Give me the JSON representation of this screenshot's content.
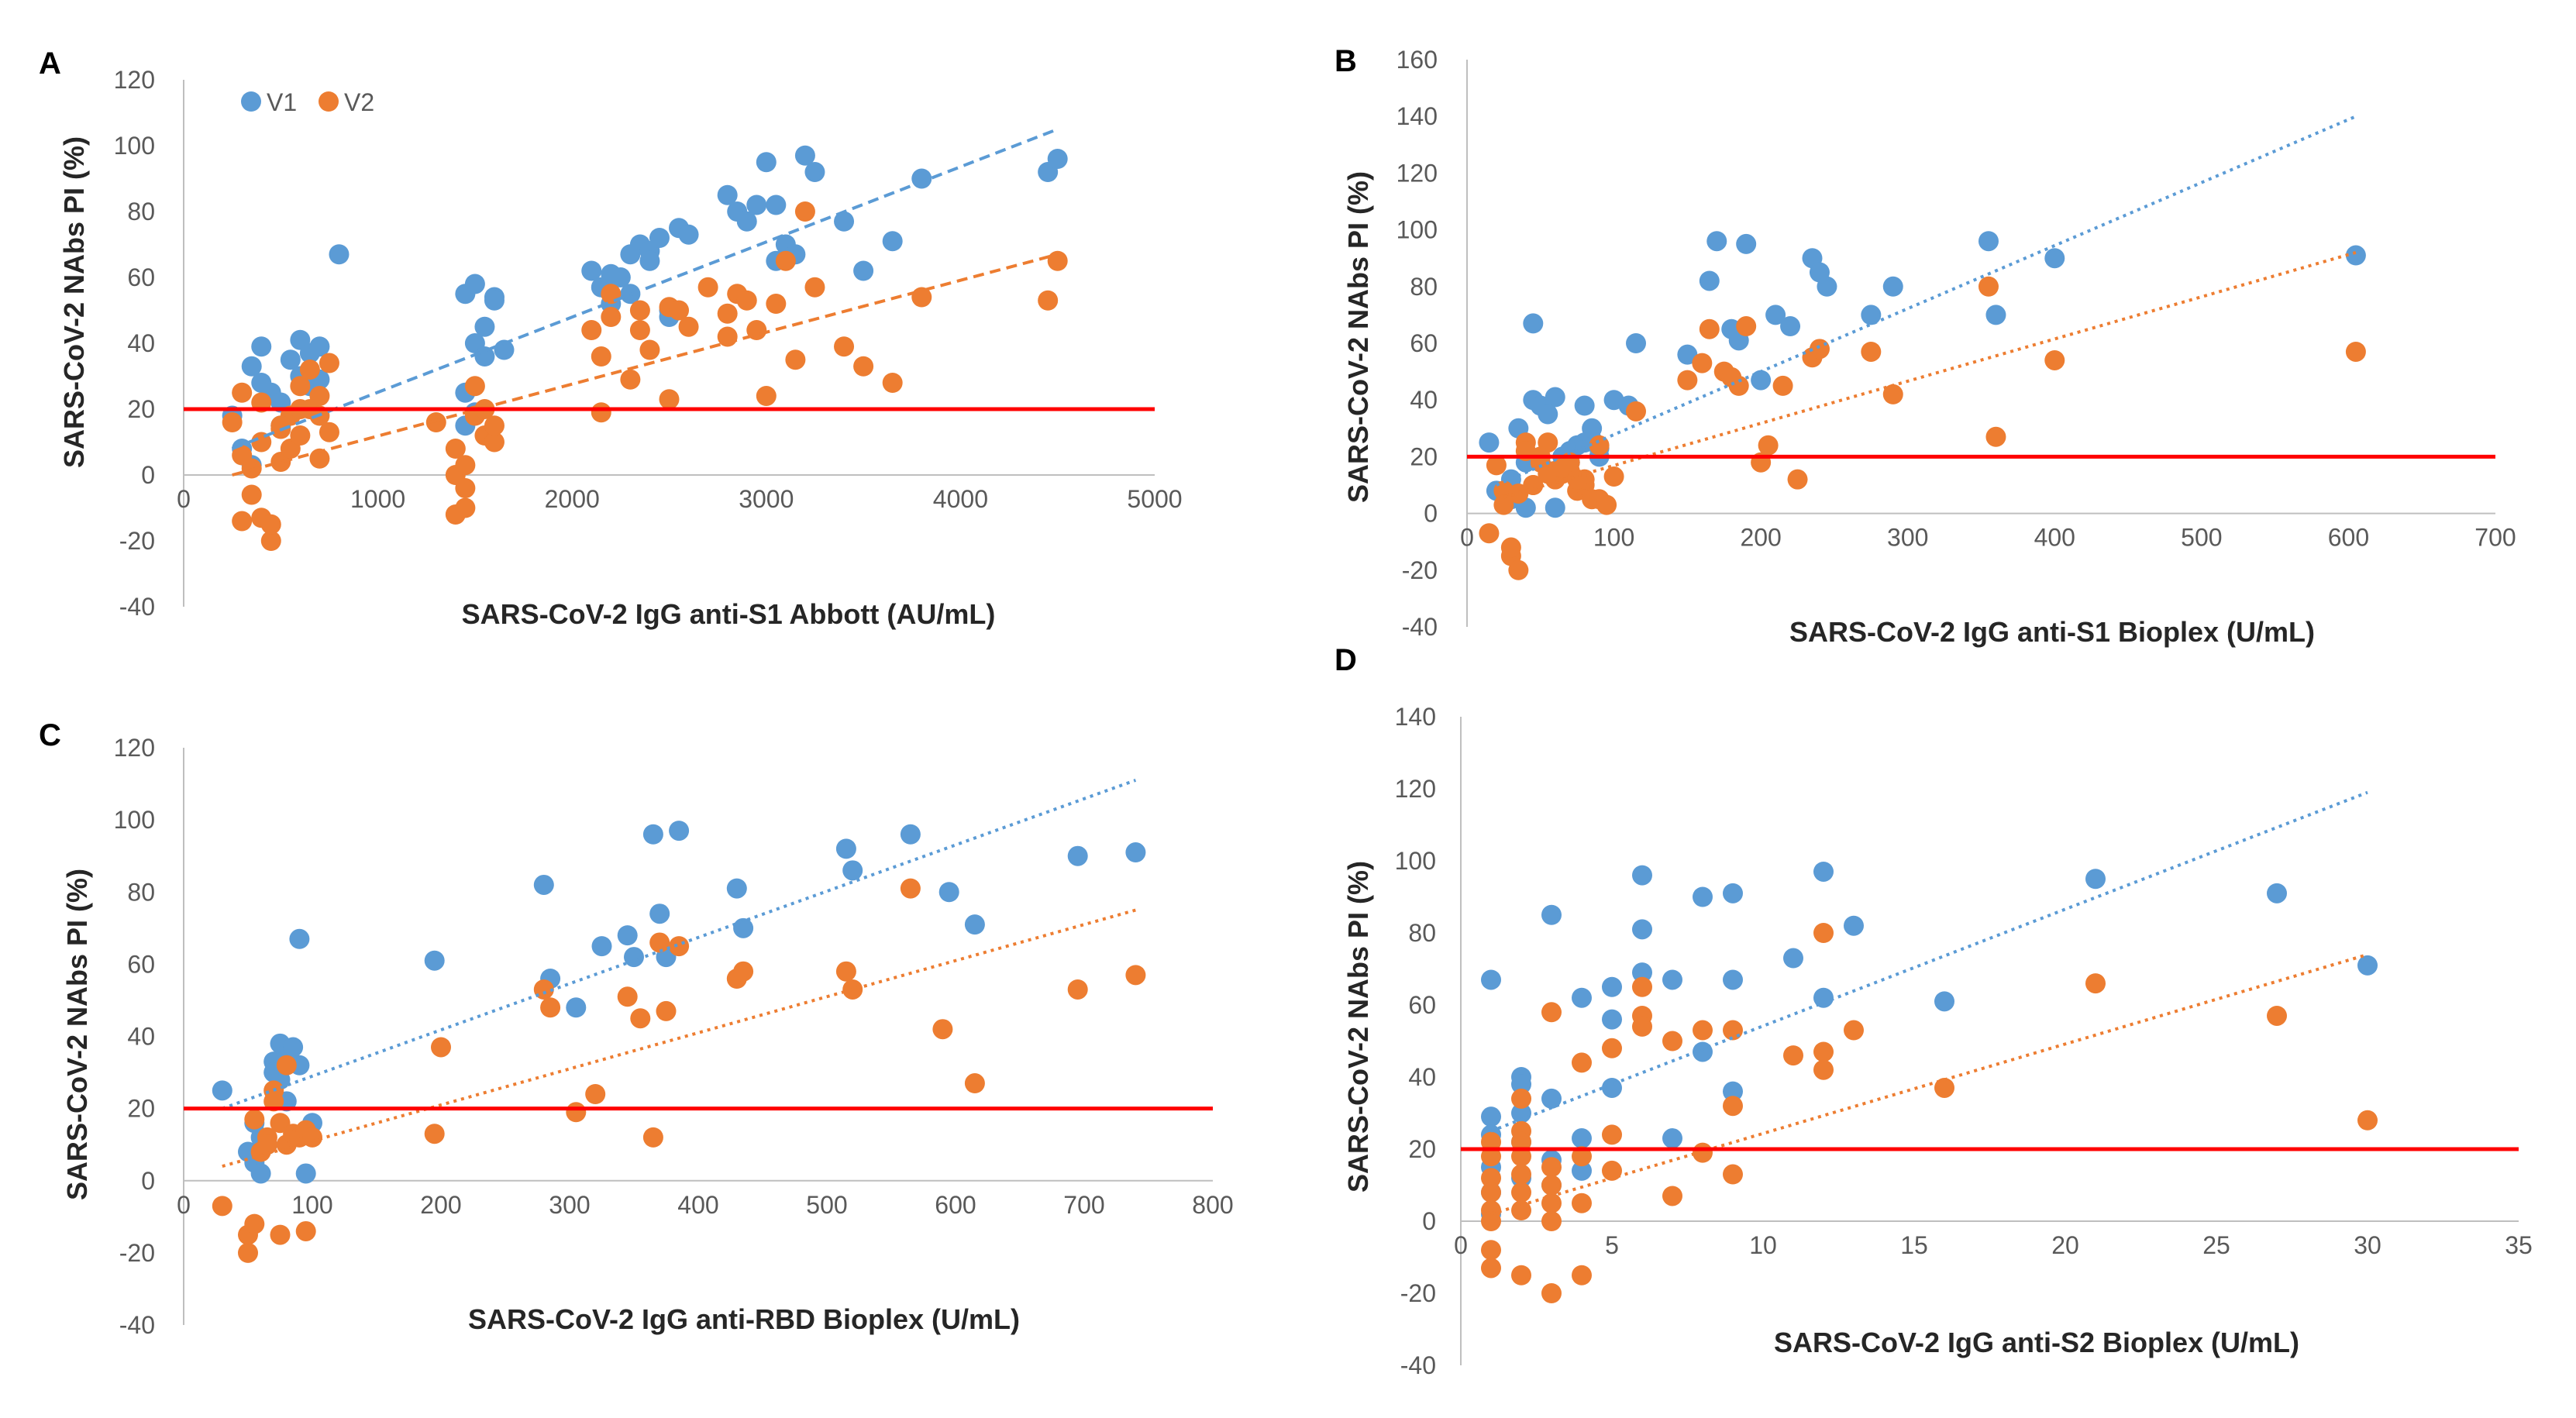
{
  "colors": {
    "v1": "#5b9bd5",
    "v2": "#ed7d31",
    "threshold": "#ff0000",
    "axis": "#bfbfbf"
  },
  "legend": {
    "v1": "V1",
    "v2": "V2"
  },
  "chart_data": [
    {
      "panel": "A",
      "type": "scatter",
      "xlabel": "SARS-CoV-2 IgG anti-S1 Abbott (AU/mL)",
      "ylabel": "SARS-CoV-2 NAbs PI (%)",
      "xlim": [
        0,
        5000
      ],
      "ylim": [
        -40,
        120
      ],
      "xticks": [
        "0",
        "1000",
        "2000",
        "3000",
        "4000",
        "5000"
      ],
      "yticks": [
        "-40",
        "-20",
        "0",
        "20",
        "40",
        "60",
        "80",
        "100",
        "120"
      ],
      "threshold": 20,
      "legend_position": "top-left",
      "series": [
        {
          "name": "V1",
          "trend": [
            [
              250,
              8
            ],
            [
              4500,
              105
            ]
          ],
          "x": [
            250,
            300,
            350,
            400,
            450,
            500,
            550,
            600,
            650,
            700,
            350,
            400,
            500,
            600,
            650,
            700,
            800,
            1450,
            1500,
            1550,
            1600,
            1650,
            1450,
            1500,
            1550,
            1600,
            1500,
            1450,
            2100,
            2150,
            2200,
            2250,
            2300,
            2350,
            2400,
            2450,
            2500,
            2550,
            2600,
            2200,
            2300,
            2400,
            2500,
            2800,
            2850,
            2900,
            3000,
            3050,
            3100,
            3150,
            3250,
            3200,
            3400,
            3500,
            3650,
            3800,
            4450,
            4500,
            2950,
            3050
          ],
          "y": [
            18,
            8,
            33,
            39,
            25,
            15,
            35,
            41,
            37,
            29,
            3,
            28,
            22,
            30,
            27,
            39,
            67,
            55,
            58,
            45,
            54,
            38,
            25,
            40,
            36,
            53,
            19,
            15,
            62,
            57,
            61,
            60,
            67,
            70,
            68,
            72,
            48,
            75,
            73,
            52,
            55,
            65,
            50,
            85,
            80,
            77,
            95,
            82,
            70,
            67,
            92,
            97,
            77,
            62,
            71,
            90,
            92,
            96,
            82,
            65
          ]
        },
        {
          "name": "V2",
          "trend": [
            [
              250,
              0
            ],
            [
              4500,
              67
            ]
          ],
          "x": [
            250,
            300,
            300,
            350,
            350,
            400,
            400,
            450,
            450,
            500,
            500,
            550,
            550,
            600,
            600,
            650,
            650,
            700,
            700,
            750,
            750,
            300,
            400,
            500,
            600,
            700,
            1300,
            1400,
            1400,
            1450,
            1450,
            1500,
            1500,
            1550,
            1550,
            1600,
            1600,
            1400,
            1450,
            2100,
            2150,
            2150,
            2200,
            2200,
            2300,
            2350,
            2350,
            2400,
            2500,
            2500,
            2550,
            2600,
            2700,
            2800,
            2800,
            2850,
            2900,
            2950,
            3000,
            3050,
            3100,
            3150,
            3200,
            3250,
            3400,
            3500,
            3650,
            3800,
            4450,
            4500
          ],
          "y": [
            16,
            25,
            -14,
            -6,
            2,
            -13,
            22,
            -20,
            -15,
            14,
            4,
            18,
            8,
            27,
            12,
            32,
            20,
            24,
            5,
            13,
            34,
            6,
            10,
            15,
            20,
            18,
            16,
            -12,
            0,
            -4,
            3,
            27,
            18,
            20,
            12,
            10,
            15,
            8,
            -10,
            44,
            36,
            19,
            48,
            55,
            29,
            50,
            44,
            38,
            23,
            51,
            50,
            45,
            57,
            42,
            49,
            55,
            53,
            44,
            24,
            52,
            65,
            35,
            80,
            57,
            39,
            33,
            28,
            54,
            53,
            65
          ]
        }
      ]
    },
    {
      "panel": "B",
      "type": "scatter",
      "xlabel": "SARS-CoV-2 IgG anti-S1 Bioplex (U/mL)",
      "ylabel": "SARS-CoV-2 NAbs PI (%)",
      "xlim": [
        0,
        700
      ],
      "ylim": [
        -40,
        160
      ],
      "xticks": [
        "0",
        "100",
        "200",
        "300",
        "400",
        "500",
        "600",
        "700"
      ],
      "yticks": [
        "-40",
        "-20",
        "0",
        "20",
        "40",
        "60",
        "80",
        "100",
        "120",
        "140",
        "160"
      ],
      "threshold": 20,
      "legend_position": "none",
      "series": [
        {
          "name": "V1",
          "trend": [
            [
              20,
              10
            ],
            [
              605,
              140
            ]
          ],
          "x": [
            15,
            20,
            30,
            35,
            40,
            45,
            50,
            55,
            60,
            65,
            70,
            75,
            80,
            85,
            90,
            45,
            55,
            60,
            70,
            80,
            85,
            90,
            100,
            110,
            115,
            150,
            165,
            170,
            180,
            185,
            190,
            200,
            210,
            220,
            235,
            240,
            245,
            275,
            290,
            355,
            360,
            400,
            605,
            30,
            40
          ],
          "y": [
            25,
            8,
            5,
            30,
            18,
            40,
            38,
            15,
            41,
            20,
            22,
            24,
            25,
            26,
            20,
            67,
            35,
            2,
            18,
            38,
            30,
            23,
            40,
            38,
            60,
            56,
            82,
            96,
            65,
            61,
            95,
            47,
            70,
            66,
            90,
            85,
            80,
            70,
            80,
            96,
            70,
            90,
            91,
            12,
            2
          ]
        },
        {
          "name": "V2",
          "trend": [
            [
              20,
              5
            ],
            [
              605,
              92
            ]
          ],
          "x": [
            15,
            20,
            25,
            30,
            35,
            40,
            45,
            50,
            55,
            60,
            65,
            70,
            75,
            80,
            85,
            90,
            95,
            30,
            40,
            50,
            60,
            70,
            80,
            90,
            25,
            35,
            45,
            55,
            65,
            75,
            100,
            115,
            150,
            160,
            165,
            175,
            180,
            185,
            190,
            200,
            205,
            215,
            225,
            235,
            240,
            275,
            290,
            355,
            360,
            400,
            605
          ],
          "y": [
            -7,
            17,
            8,
            -15,
            -20,
            25,
            10,
            18,
            25,
            12,
            14,
            15,
            8,
            10,
            5,
            5,
            3,
            -12,
            22,
            20,
            15,
            18,
            12,
            24,
            3,
            7,
            10,
            14,
            16,
            12,
            13,
            36,
            47,
            53,
            65,
            50,
            48,
            45,
            66,
            18,
            24,
            45,
            12,
            55,
            58,
            57,
            42,
            80,
            27,
            54,
            57
          ]
        }
      ]
    },
    {
      "panel": "C",
      "type": "scatter",
      "xlabel": "SARS-CoV-2 IgG anti-RBD Bioplex (U/mL)",
      "ylabel": "SARS-CoV-2 NAbs PI (%)",
      "xlim": [
        0,
        800
      ],
      "ylim": [
        -40,
        120
      ],
      "xticks": [
        "0",
        "100",
        "200",
        "300",
        "400",
        "500",
        "600",
        "700",
        "800"
      ],
      "yticks": [
        "-40",
        "-20",
        "0",
        "20",
        "40",
        "60",
        "80",
        "100",
        "120"
      ],
      "threshold": 20,
      "legend_position": "none",
      "series": [
        {
          "name": "V1",
          "trend": [
            [
              30,
              20
            ],
            [
              740,
              111
            ]
          ],
          "x": [
            30,
            50,
            55,
            60,
            65,
            70,
            75,
            80,
            85,
            90,
            95,
            100,
            60,
            70,
            80,
            90,
            195,
            280,
            285,
            305,
            325,
            345,
            350,
            365,
            370,
            375,
            385,
            430,
            435,
            515,
            520,
            565,
            595,
            615,
            695,
            740,
            55,
            75
          ],
          "y": [
            25,
            8,
            5,
            12,
            10,
            33,
            38,
            35,
            37,
            67,
            2,
            16,
            2,
            30,
            22,
            32,
            61,
            82,
            56,
            48,
            65,
            68,
            62,
            96,
            74,
            62,
            97,
            81,
            70,
            92,
            86,
            96,
            80,
            71,
            90,
            91,
            16,
            28
          ]
        },
        {
          "name": "V2",
          "trend": [
            [
              30,
              4
            ],
            [
              740,
              75
            ]
          ],
          "x": [
            30,
            50,
            55,
            60,
            65,
            70,
            75,
            80,
            85,
            90,
            95,
            100,
            50,
            55,
            65,
            75,
            95,
            70,
            80,
            195,
            200,
            280,
            285,
            305,
            320,
            345,
            355,
            365,
            370,
            375,
            385,
            430,
            435,
            515,
            520,
            565,
            590,
            615,
            695,
            740
          ],
          "y": [
            -7,
            -20,
            17,
            8,
            12,
            25,
            16,
            10,
            13,
            12,
            14,
            12,
            -15,
            -12,
            10,
            -15,
            -14,
            22,
            32,
            13,
            37,
            53,
            48,
            19,
            24,
            51,
            45,
            12,
            66,
            47,
            65,
            56,
            58,
            58,
            53,
            81,
            42,
            27,
            53,
            57
          ]
        }
      ]
    },
    {
      "panel": "D",
      "type": "scatter",
      "xlabel": "SARS-CoV-2 IgG anti-S2 Bioplex (U/mL)",
      "ylabel": "SARS-CoV-2 NAbs PI (%)",
      "xlim": [
        0,
        35
      ],
      "ylim": [
        -40,
        140
      ],
      "xticks": [
        "0",
        "5",
        "10",
        "15",
        "20",
        "25",
        "30",
        "35"
      ],
      "yticks": [
        "-40",
        "-20",
        "0",
        "20",
        "40",
        "60",
        "80",
        "100",
        "120",
        "140"
      ],
      "threshold": 20,
      "legend_position": "none",
      "series": [
        {
          "name": "V1",
          "trend": [
            [
              1,
              25
            ],
            [
              30,
              119
            ]
          ],
          "x": [
            1,
            1,
            1,
            1,
            1,
            1,
            2,
            2,
            2,
            2,
            2,
            3,
            3,
            3,
            3,
            4,
            4,
            4,
            5,
            5,
            5,
            6,
            6,
            6,
            7,
            7,
            8,
            8,
            9,
            9,
            9,
            11,
            12,
            12,
            13,
            16,
            21,
            27,
            30
          ],
          "y": [
            67,
            29,
            24,
            15,
            8,
            2,
            40,
            38,
            30,
            22,
            12,
            85,
            34,
            17,
            10,
            62,
            23,
            14,
            65,
            56,
            37,
            96,
            81,
            69,
            67,
            23,
            90,
            47,
            91,
            67,
            36,
            73,
            97,
            62,
            82,
            61,
            95,
            91,
            71
          ]
        },
        {
          "name": "V2",
          "trend": [
            [
              1,
              2
            ],
            [
              30,
              74
            ]
          ],
          "x": [
            1,
            1,
            1,
            1,
            1,
            1,
            1,
            1,
            2,
            2,
            2,
            2,
            2,
            2,
            2,
            2,
            3,
            3,
            3,
            3,
            3,
            3,
            4,
            4,
            4,
            4,
            5,
            5,
            5,
            6,
            6,
            6,
            7,
            7,
            8,
            8,
            9,
            9,
            9,
            11,
            12,
            12,
            12,
            13,
            16,
            21,
            27,
            30
          ],
          "y": [
            22,
            18,
            12,
            8,
            3,
            0,
            -8,
            -13,
            34,
            25,
            18,
            13,
            8,
            3,
            -15,
            22,
            58,
            15,
            10,
            5,
            0,
            -20,
            44,
            18,
            5,
            -15,
            48,
            24,
            14,
            65,
            57,
            54,
            50,
            7,
            53,
            19,
            53,
            32,
            13,
            46,
            80,
            47,
            42,
            53,
            37,
            66,
            57,
            28
          ]
        }
      ]
    }
  ]
}
